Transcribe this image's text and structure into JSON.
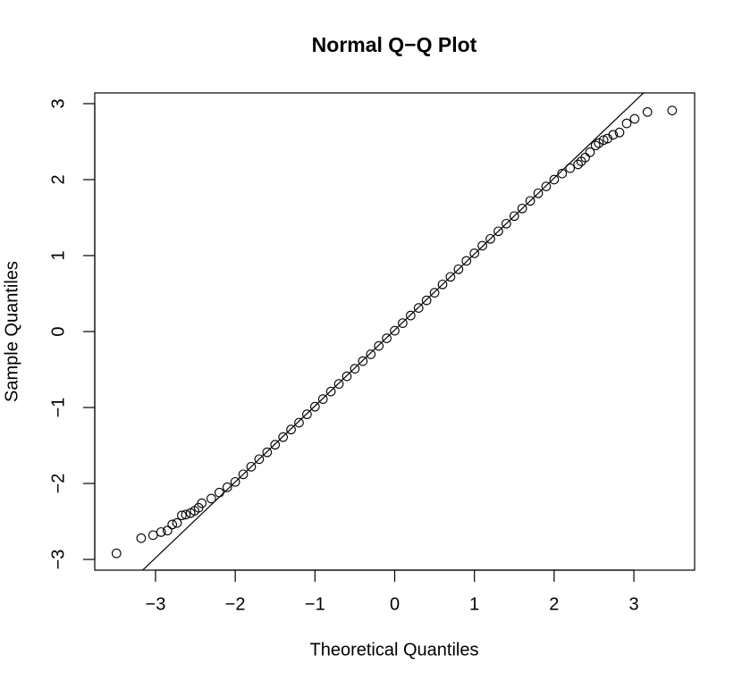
{
  "chart_data": {
    "type": "scatter",
    "title": "Normal Q−Q Plot",
    "x_label": "Theoretical Quantiles",
    "y_label": "Sample Quantiles",
    "xlim": [
      -3.762,
      3.762
    ],
    "ylim": [
      -3.141,
      3.141
    ],
    "xticks": [
      {
        "value": -3,
        "label": "−3"
      },
      {
        "value": -2,
        "label": "−2"
      },
      {
        "value": -1,
        "label": "−1"
      },
      0,
      1,
      2,
      3
    ],
    "yticks": [
      {
        "value": -3,
        "label": "−3"
      },
      {
        "value": -2,
        "label": "−2"
      },
      {
        "value": -1,
        "label": "−1"
      },
      0,
      1,
      2,
      3
    ],
    "reference_line": {
      "intercept": 0.02,
      "slope": 1.0
    },
    "color": "#000000",
    "x": [
      -3.49,
      -3.18,
      -3.03,
      -2.93,
      -2.85,
      -2.79,
      -2.73,
      -2.67,
      -2.62,
      -2.56,
      -2.51,
      -2.46,
      -2.42,
      -2.3,
      -2.2,
      -2.1,
      -2.0,
      -1.9,
      -1.8,
      -1.7,
      -1.6,
      -1.5,
      -1.4,
      -1.3,
      -1.2,
      -1.1,
      -1.0,
      -0.9,
      -0.8,
      -0.7,
      -0.6,
      -0.5,
      -0.4,
      -0.3,
      -0.2,
      -0.1,
      0.0,
      0.1,
      0.2,
      0.3,
      0.4,
      0.5,
      0.6,
      0.7,
      0.8,
      0.9,
      1.0,
      1.1,
      1.2,
      1.3,
      1.4,
      1.5,
      1.6,
      1.7,
      1.8,
      1.9,
      2.0,
      2.1,
      2.2,
      2.3,
      2.34,
      2.39,
      2.45,
      2.52,
      2.56,
      2.62,
      2.67,
      2.74,
      2.82,
      2.91,
      3.01,
      3.17,
      3.48
    ],
    "y": [
      -2.92,
      -2.72,
      -2.68,
      -2.64,
      -2.62,
      -2.54,
      -2.52,
      -2.42,
      -2.41,
      -2.39,
      -2.36,
      -2.32,
      -2.26,
      -2.2,
      -2.12,
      -2.05,
      -1.98,
      -1.88,
      -1.78,
      -1.68,
      -1.59,
      -1.49,
      -1.39,
      -1.29,
      -1.2,
      -1.09,
      -0.99,
      -0.89,
      -0.79,
      -0.69,
      -0.59,
      -0.49,
      -0.39,
      -0.3,
      -0.19,
      -0.09,
      0.01,
      0.11,
      0.21,
      0.31,
      0.41,
      0.51,
      0.62,
      0.72,
      0.82,
      0.93,
      1.03,
      1.13,
      1.22,
      1.32,
      1.42,
      1.52,
      1.62,
      1.72,
      1.82,
      1.91,
      2.0,
      2.08,
      2.15,
      2.2,
      2.24,
      2.29,
      2.36,
      2.45,
      2.48,
      2.52,
      2.54,
      2.59,
      2.62,
      2.74,
      2.8,
      2.89,
      2.91
    ]
  }
}
